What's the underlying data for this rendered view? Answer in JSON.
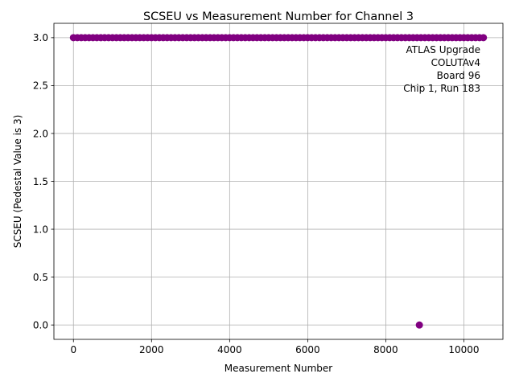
{
  "chart_data": {
    "type": "scatter",
    "title": "SCSEU vs Measurement Number for Channel 3",
    "xlabel": "Measurement Number",
    "ylabel": "SCSEU (Pedestal Value is 3)",
    "xlim": [
      -500,
      11000
    ],
    "ylim": [
      -0.15,
      3.15
    ],
    "xticks": [
      0,
      2000,
      4000,
      6000,
      8000,
      10000
    ],
    "yticks": [
      0.0,
      0.5,
      1.0,
      1.5,
      2.0,
      2.5,
      3.0
    ],
    "xtick_labels": [
      "0",
      "2000",
      "4000",
      "6000",
      "8000",
      "10000"
    ],
    "ytick_labels": [
      "0.0",
      "0.5",
      "1.0",
      "1.5",
      "2.0",
      "2.5",
      "3.0"
    ],
    "grid": true,
    "marker_color": "#800080",
    "series": [
      {
        "constant_y": 3.0,
        "x_start": 0,
        "x_end": 10500,
        "x_step": 100
      },
      {
        "points": [
          [
            8860,
            0.0
          ]
        ]
      }
    ],
    "annotation": {
      "lines": [
        "ATLAS Upgrade",
        "COLUTAv4",
        "Board 96",
        "Chip 1, Run 183"
      ],
      "placement": "top-right"
    }
  }
}
